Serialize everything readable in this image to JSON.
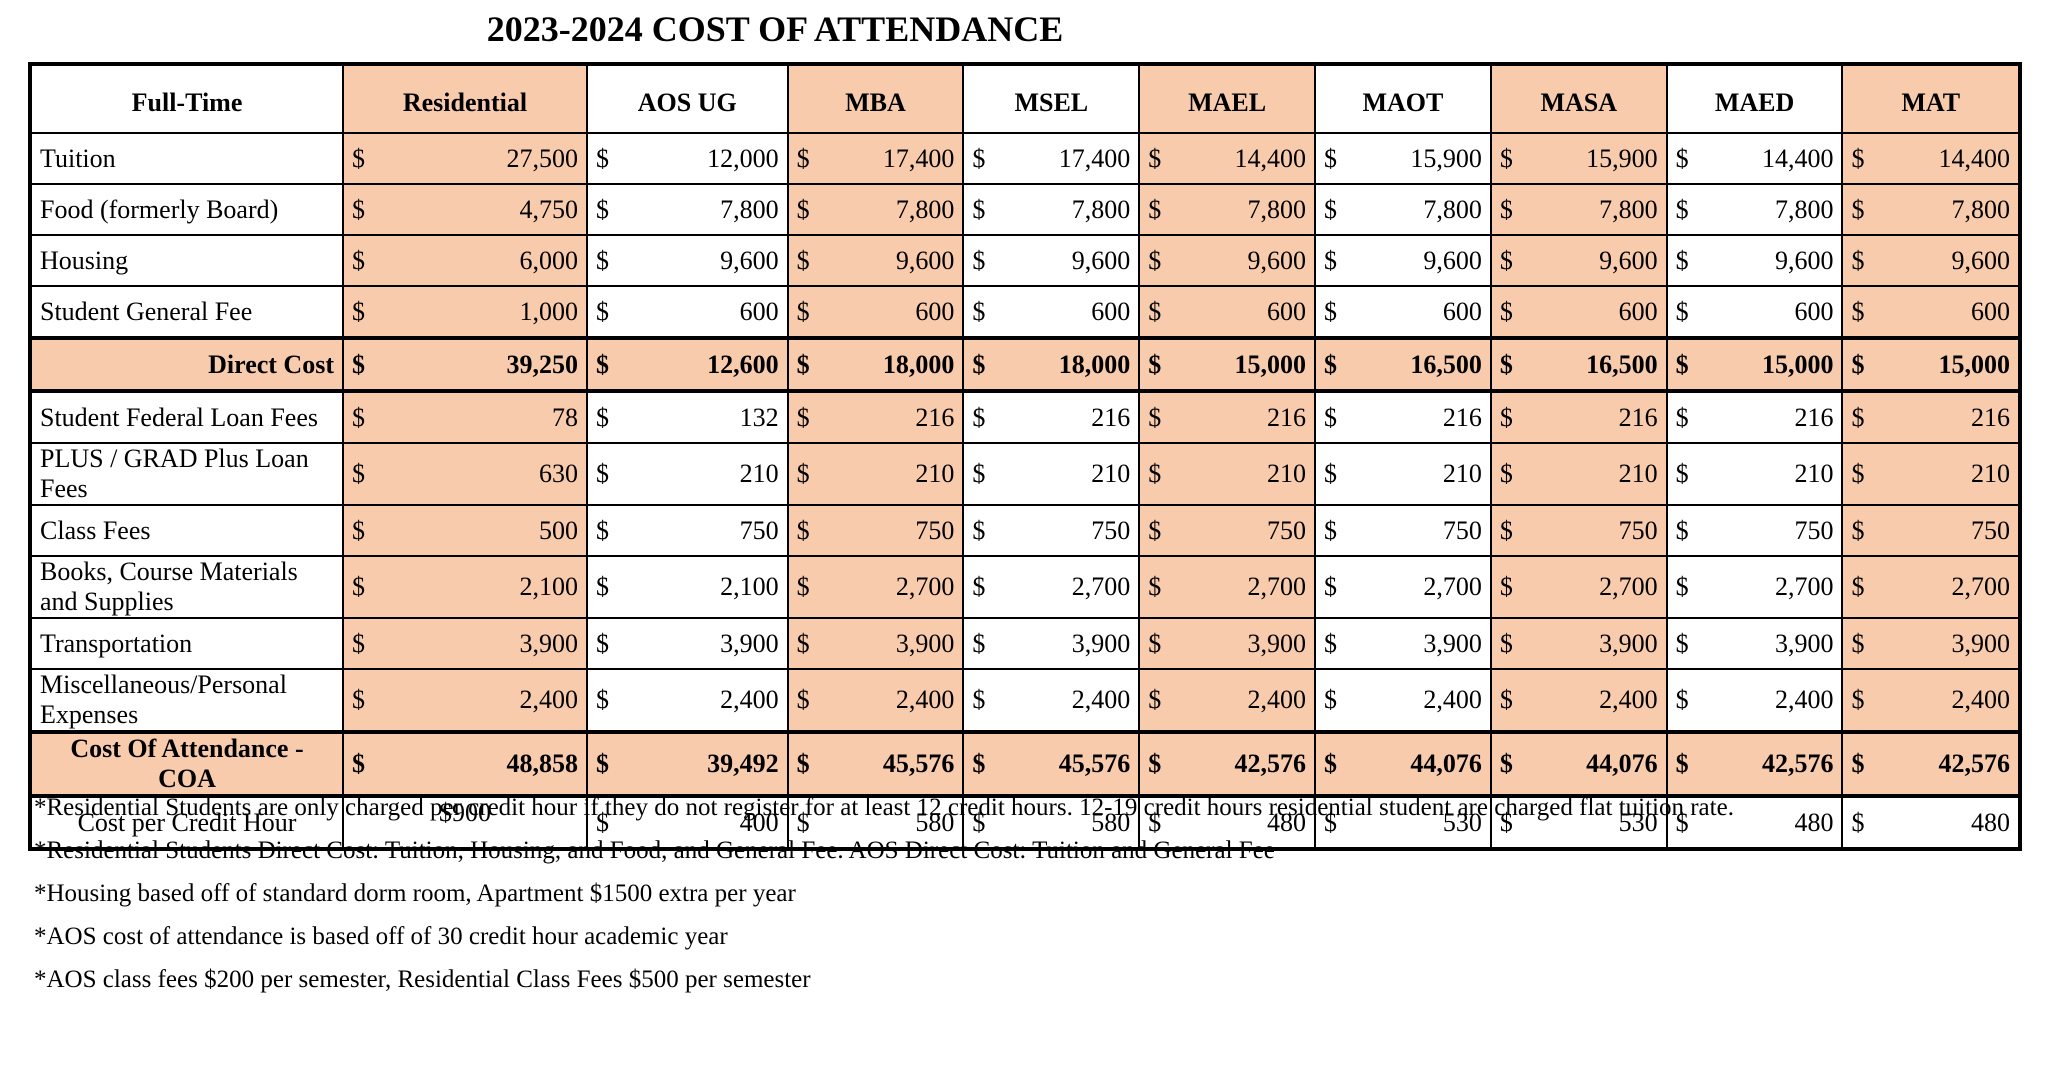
{
  "title": "2023-2024  COST OF ATTENDANCE",
  "shade_color": "#f8cbad",
  "table": {
    "corner": "Full-Time",
    "columns": [
      {
        "name": "Residential",
        "shaded": true
      },
      {
        "name": "AOS UG",
        "shaded": false
      },
      {
        "name": "MBA",
        "shaded": true
      },
      {
        "name": "MSEL",
        "shaded": false
      },
      {
        "name": "MAEL",
        "shaded": true
      },
      {
        "name": "MAOT",
        "shaded": false
      },
      {
        "name": "MASA",
        "shaded": true
      },
      {
        "name": "MAED",
        "shaded": false
      },
      {
        "name": "MAT",
        "shaded": true
      }
    ],
    "rows": [
      {
        "label": "Tuition",
        "cells": [
          [
            "$",
            "27,500"
          ],
          [
            "$",
            "12,000"
          ],
          [
            "$",
            "17,400"
          ],
          [
            "$",
            "17,400"
          ],
          [
            "$",
            "14,400"
          ],
          [
            "$",
            "15,900"
          ],
          [
            "$",
            "15,900"
          ],
          [
            "$",
            "14,400"
          ],
          [
            "$",
            "14,400"
          ]
        ]
      },
      {
        "label": "Food (formerly Board)",
        "cells": [
          [
            "$",
            "4,750"
          ],
          [
            "$",
            "7,800"
          ],
          [
            "$",
            "7,800"
          ],
          [
            "$",
            "7,800"
          ],
          [
            "$",
            "7,800"
          ],
          [
            "$",
            "7,800"
          ],
          [
            "$",
            "7,800"
          ],
          [
            "$",
            "7,800"
          ],
          [
            "$",
            "7,800"
          ]
        ]
      },
      {
        "label": "Housing",
        "cells": [
          [
            "$",
            "6,000"
          ],
          [
            "$",
            "9,600"
          ],
          [
            "$",
            "9,600"
          ],
          [
            "$",
            "9,600"
          ],
          [
            "$",
            "9,600"
          ],
          [
            "$",
            "9,600"
          ],
          [
            "$",
            "9,600"
          ],
          [
            "$",
            "9,600"
          ],
          [
            "$",
            "9,600"
          ]
        ]
      },
      {
        "label": "Student General Fee",
        "cells": [
          [
            "$",
            "1,000"
          ],
          [
            "$",
            "600"
          ],
          [
            "$",
            "600"
          ],
          [
            "$",
            "600"
          ],
          [
            "$",
            "600"
          ],
          [
            "$",
            "600"
          ],
          [
            "$",
            "600"
          ],
          [
            "$",
            "600"
          ],
          [
            "$",
            "600"
          ]
        ]
      },
      {
        "label": "Direct Cost",
        "bold": true,
        "shaded": true,
        "label_align": "right",
        "cells": [
          [
            "$",
            "39,250"
          ],
          [
            "$",
            "12,600"
          ],
          [
            "$",
            "18,000"
          ],
          [
            "$",
            "18,000"
          ],
          [
            "$",
            "15,000"
          ],
          [
            "$",
            "16,500"
          ],
          [
            "$",
            "16,500"
          ],
          [
            "$",
            "15,000"
          ],
          [
            "$",
            "15,000"
          ]
        ]
      },
      {
        "label": "Student Federal Loan Fees",
        "cells": [
          [
            "$",
            "78"
          ],
          [
            "$",
            "132"
          ],
          [
            "$",
            "216"
          ],
          [
            "$",
            "216"
          ],
          [
            "$",
            "216"
          ],
          [
            "$",
            "216"
          ],
          [
            "$",
            "216"
          ],
          [
            "$",
            "216"
          ],
          [
            "$",
            "216"
          ]
        ]
      },
      {
        "label": "PLUS / GRAD Plus Loan Fees",
        "cells": [
          [
            "$",
            "630"
          ],
          [
            "$",
            "210"
          ],
          [
            "$",
            "210"
          ],
          [
            "$",
            "210"
          ],
          [
            "$",
            "210"
          ],
          [
            "$",
            "210"
          ],
          [
            "$",
            "210"
          ],
          [
            "$",
            "210"
          ],
          [
            "$",
            "210"
          ]
        ]
      },
      {
        "label": "Class Fees",
        "cells": [
          [
            "$",
            "500"
          ],
          [
            "$",
            "750"
          ],
          [
            "$",
            "750"
          ],
          [
            "$",
            "750"
          ],
          [
            "$",
            "750"
          ],
          [
            "$",
            "750"
          ],
          [
            "$",
            "750"
          ],
          [
            "$",
            "750"
          ],
          [
            "$",
            "750"
          ]
        ]
      },
      {
        "label": "Books, Course Materials and Supplies",
        "cells": [
          [
            "$",
            "2,100"
          ],
          [
            "$",
            "2,100"
          ],
          [
            "$",
            "2,700"
          ],
          [
            "$",
            "2,700"
          ],
          [
            "$",
            "2,700"
          ],
          [
            "$",
            "2,700"
          ],
          [
            "$",
            "2,700"
          ],
          [
            "$",
            "2,700"
          ],
          [
            "$",
            "2,700"
          ]
        ]
      },
      {
        "label": "Transportation",
        "cells": [
          [
            "$",
            "3,900"
          ],
          [
            "$",
            "3,900"
          ],
          [
            "$",
            "3,900"
          ],
          [
            "$",
            "3,900"
          ],
          [
            "$",
            "3,900"
          ],
          [
            "$",
            "3,900"
          ],
          [
            "$",
            "3,900"
          ],
          [
            "$",
            "3,900"
          ],
          [
            "$",
            "3,900"
          ]
        ]
      },
      {
        "label": "Miscellaneous/Personal Expenses",
        "cells": [
          [
            "$",
            "2,400"
          ],
          [
            "$",
            "2,400"
          ],
          [
            "$",
            "2,400"
          ],
          [
            "$",
            "2,400"
          ],
          [
            "$",
            "2,400"
          ],
          [
            "$",
            "2,400"
          ],
          [
            "$",
            "2,400"
          ],
          [
            "$",
            "2,400"
          ],
          [
            "$",
            "2,400"
          ]
        ]
      },
      {
        "label": "Cost Of Attendance - COA",
        "bold": true,
        "shaded": true,
        "label_align": "center",
        "cells": [
          [
            "$",
            "48,858"
          ],
          [
            "$",
            "39,492"
          ],
          [
            "$",
            "45,576"
          ],
          [
            "$",
            "45,576"
          ],
          [
            "$",
            "42,576"
          ],
          [
            "$",
            "44,076"
          ],
          [
            "$",
            "44,076"
          ],
          [
            "$",
            "42,576"
          ],
          [
            "$",
            "42,576"
          ]
        ]
      },
      {
        "label": "Cost per Credit Hour",
        "label_align": "center",
        "unshaded": true,
        "cells": [
          [
            "$900"
          ],
          [
            "$",
            "400"
          ],
          [
            "$",
            "580"
          ],
          [
            "$",
            "580"
          ],
          [
            "$",
            "480"
          ],
          [
            "$",
            "530"
          ],
          [
            "$",
            "530"
          ],
          [
            "$",
            "480"
          ],
          [
            "$",
            "480"
          ]
        ]
      }
    ]
  },
  "notes": [
    "*Residential Students are only charged per credit hour if they do not register for at least 12 credit hours. 12-19 credit hours residential student are charged flat tuition rate.",
    "*Residential Students Direct Cost: Tuition, Housing, and Food, and General Fee. AOS Direct Cost: Tuition and General Fee",
    "*Housing based off of standard dorm room, Apartment $1500 extra per year",
    "*AOS cost of attendance is based off of 30 credit hour academic year",
    "*AOS class fees $200 per semester, Residential Class Fees $500 per semester"
  ]
}
